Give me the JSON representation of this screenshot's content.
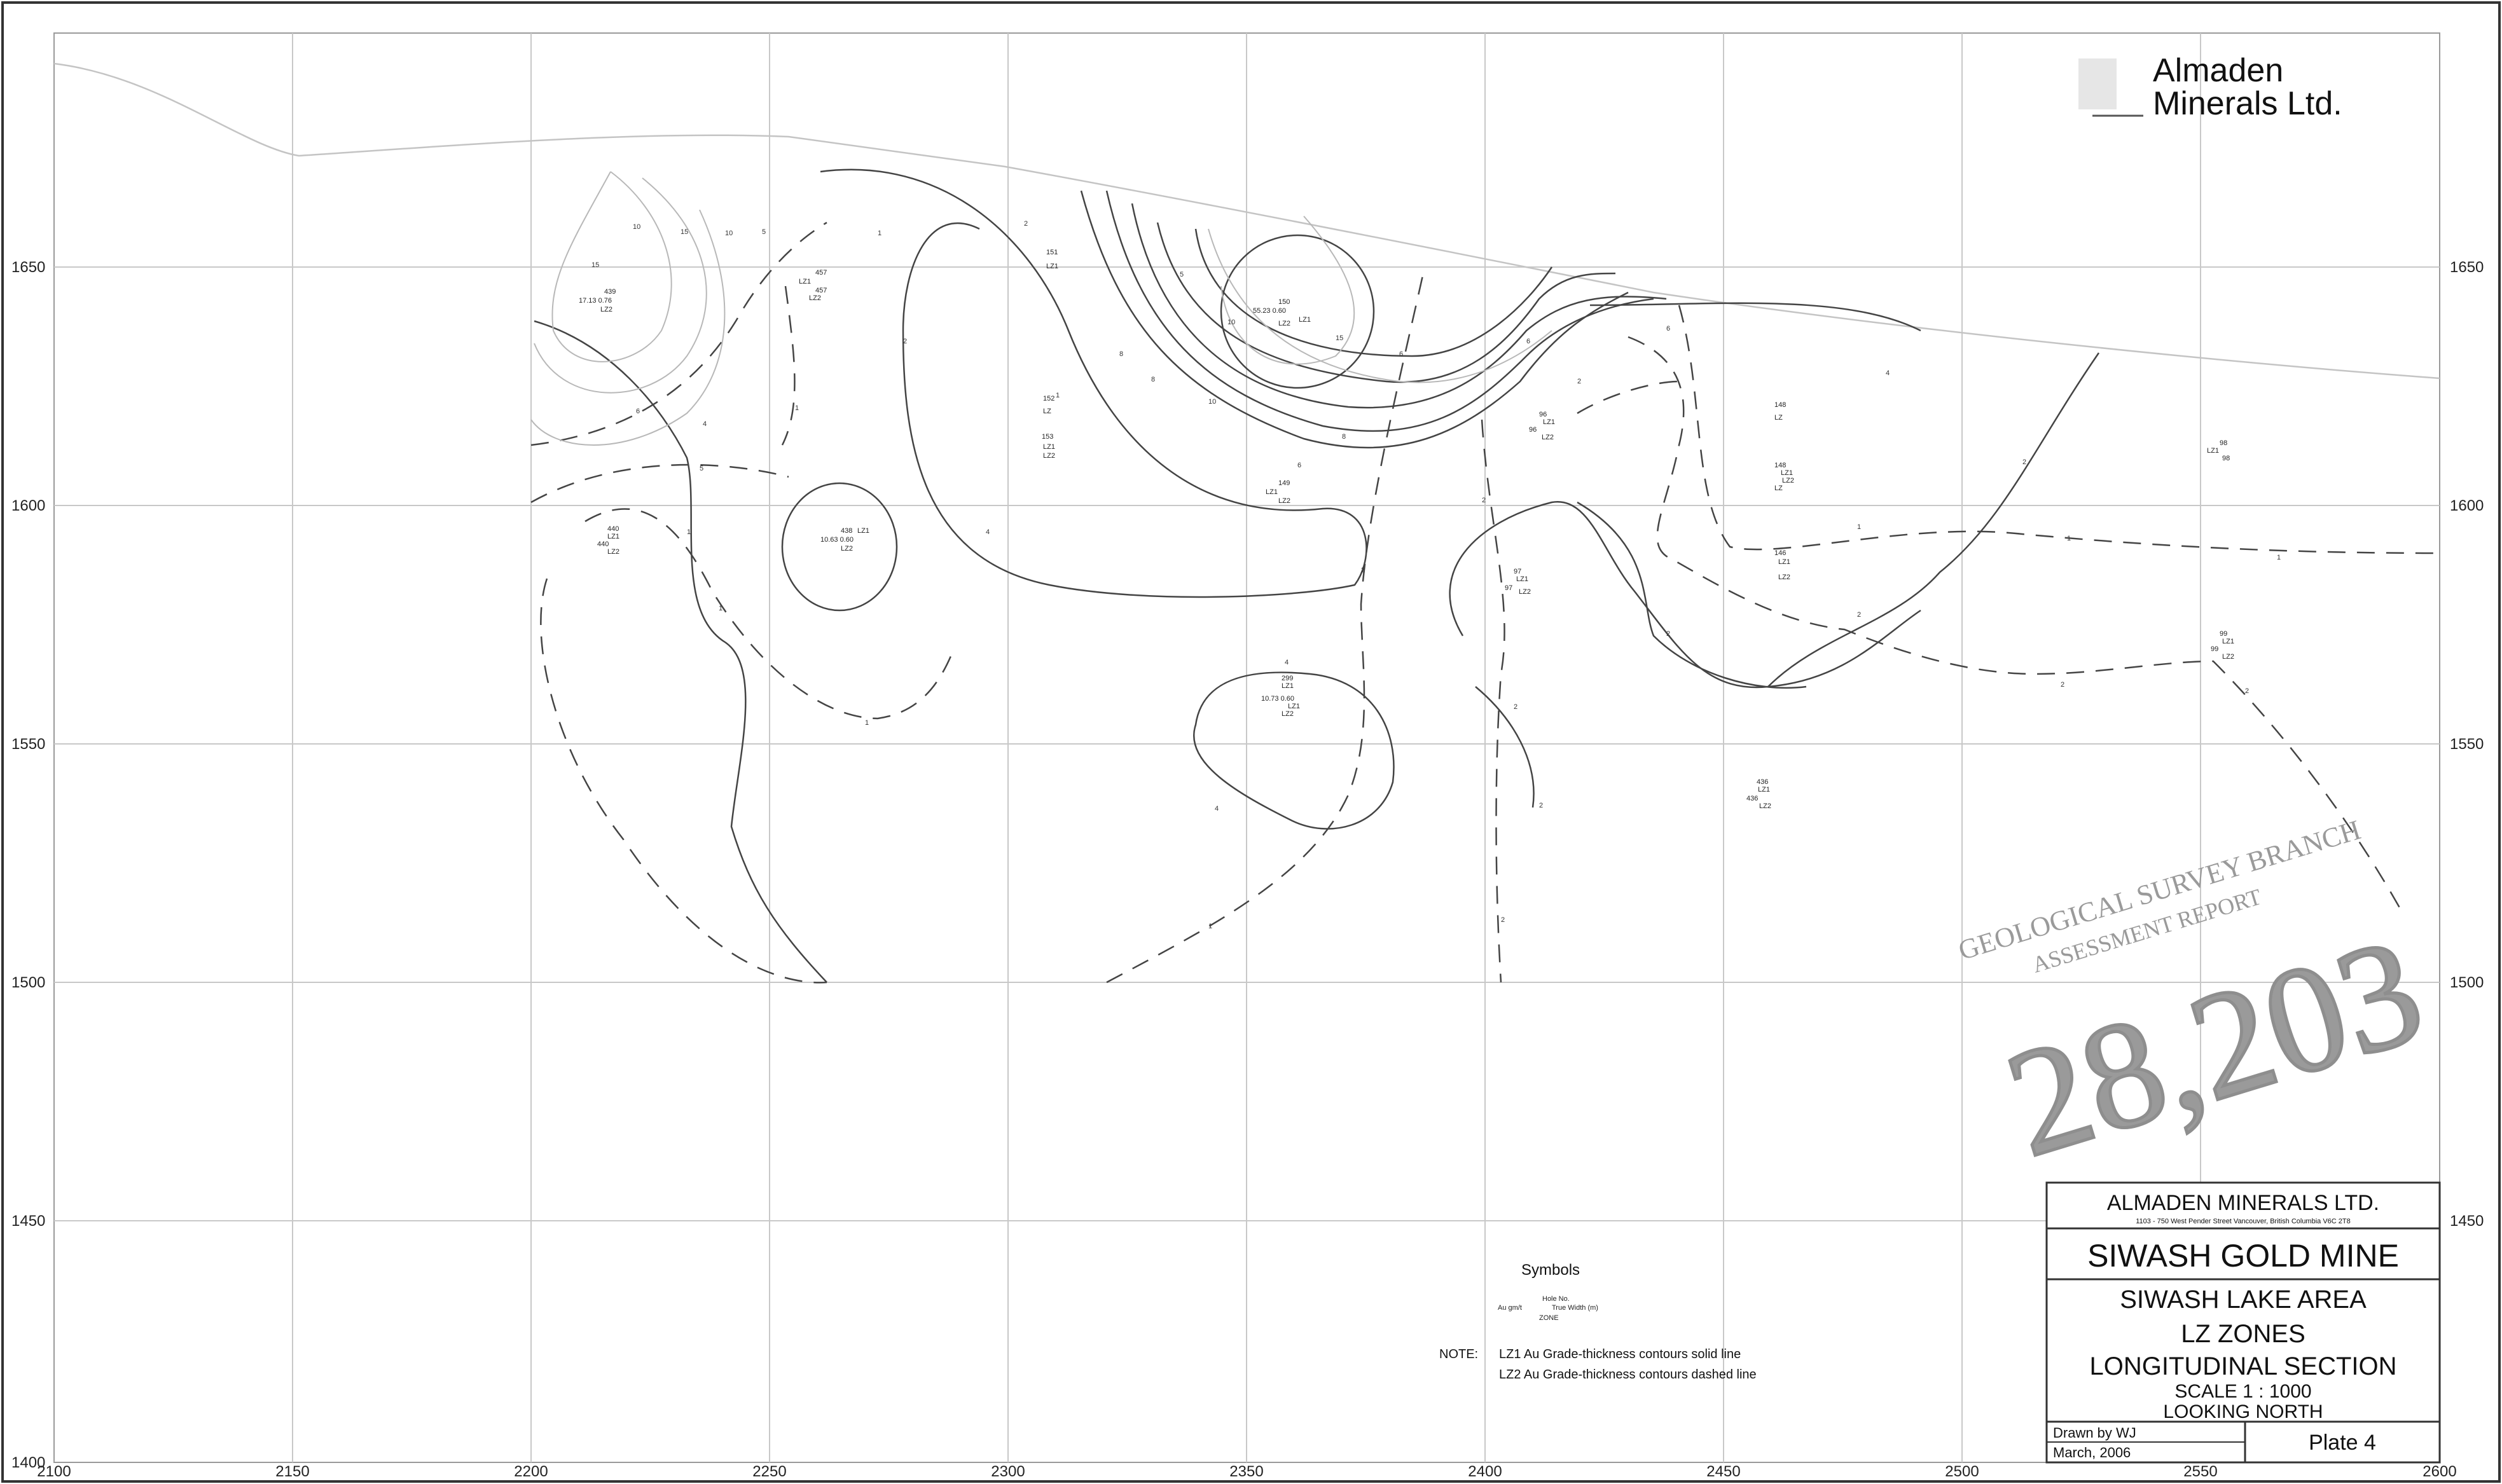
{
  "logo": {
    "line1": "Almaden",
    "line2": "Minerals Ltd."
  },
  "axes": {
    "x_ticks": [
      "2100",
      "2150",
      "2200",
      "2250",
      "2300",
      "2350",
      "2400",
      "2450",
      "2500",
      "2550",
      "2600"
    ],
    "y_ticks": [
      "1650",
      "1600",
      "1550",
      "1500",
      "1450",
      "1400"
    ]
  },
  "title_block": {
    "company": "ALMADEN MINERALS LTD.",
    "address": "1103 - 750 West Pender Street Vancouver, British Columbia V6C 2T8",
    "project": "SIWASH GOLD MINE",
    "area": "SIWASH LAKE AREA",
    "zones": "LZ ZONES",
    "section": "LONGITUDINAL SECTION",
    "scale": "SCALE 1 : 1000",
    "view": "LOOKING NORTH",
    "drawn_by": "Drawn by WJ",
    "date": "March, 2006",
    "plate": "Plate 4"
  },
  "symbols": {
    "title": "Symbols",
    "hole_no": "Hole No.",
    "au": "Au gm/t",
    "true_width": "True Width (m)",
    "zone": "ZONE",
    "note_label": "NOTE:",
    "note1": "LZ1 Au Grade-thickness contours solid line",
    "note2": "LZ2 Au Grade-thickness contours dashed line"
  },
  "stamp": {
    "line1": "GEOLOGICAL SURVEY BRANCH",
    "line2": "ASSESSMENT REPORT",
    "number": "28,203"
  },
  "holes": [
    {
      "id": "h1",
      "labels": [
        "439",
        "17.13  0.76",
        "LZ2"
      ]
    },
    {
      "id": "h2",
      "labels": [
        "457",
        "LZ1",
        "457",
        "LZ2"
      ]
    },
    {
      "id": "h3",
      "labels": [
        "151",
        "LZ1"
      ]
    },
    {
      "id": "h4",
      "labels": [
        "150",
        "55.23  0.60",
        "LZ1",
        "LZ2"
      ]
    },
    {
      "id": "h5",
      "labels": [
        "152",
        "LZ"
      ]
    },
    {
      "id": "h6",
      "labels": [
        "153",
        "LZ1",
        "LZ2"
      ]
    },
    {
      "id": "h7",
      "labels": [
        "440",
        "LZ1",
        "440",
        "LZ2"
      ]
    },
    {
      "id": "h8",
      "labels": [
        "438",
        "LZ1",
        "10.63  0.60",
        "LZ2"
      ]
    },
    {
      "id": "h9",
      "labels": [
        "149",
        "LZ1",
        "LZ2"
      ]
    },
    {
      "id": "h10",
      "labels": [
        "96",
        "LZ1",
        "96",
        "LZ2"
      ]
    },
    {
      "id": "h11",
      "labels": [
        "148",
        "LZ"
      ]
    },
    {
      "id": "h12",
      "labels": [
        "148",
        "LZ1",
        "LZ2",
        "LZ"
      ]
    },
    {
      "id": "h13",
      "labels": [
        "97",
        "LZ1",
        "97",
        "LZ2"
      ]
    },
    {
      "id": "h14",
      "labels": [
        "299",
        "LZ1",
        "10.73  0.60",
        "LZ1",
        "LZ2"
      ]
    },
    {
      "id": "h15",
      "labels": [
        "146",
        "LZ1",
        "LZ2"
      ]
    },
    {
      "id": "h16",
      "labels": [
        "436",
        "LZ1",
        "436",
        "LZ2"
      ]
    },
    {
      "id": "h17",
      "labels": [
        "98",
        "LZ1",
        "98"
      ]
    },
    {
      "id": "h18",
      "labels": [
        "99",
        "LZ1",
        "99",
        "LZ2"
      ]
    }
  ]
}
